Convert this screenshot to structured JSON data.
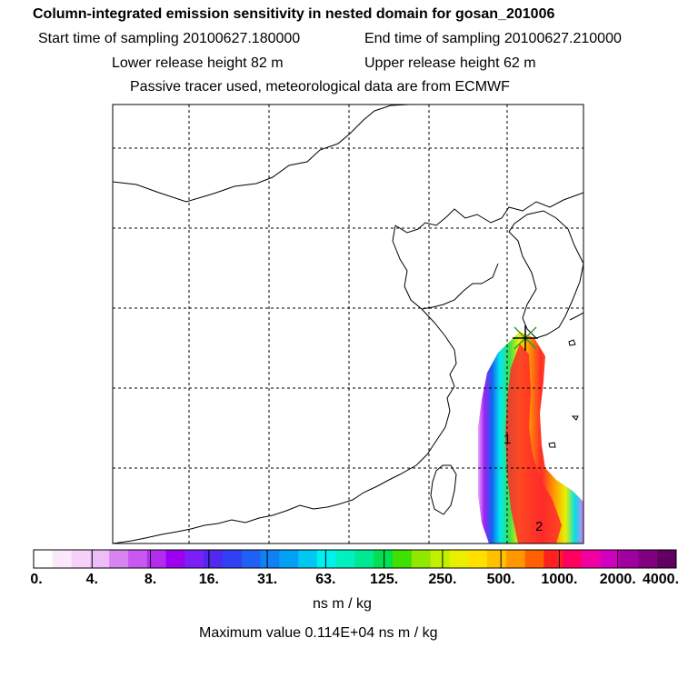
{
  "header": {
    "title": "Column-integrated emission sensitivity in nested domain for gosan_201006",
    "start_time": "Start time of sampling 20100627.180000",
    "end_time": "End time of sampling 20100627.210000",
    "lower_release": "Lower release height   82 m",
    "upper_release": "Upper release height   62 m",
    "tracer_note": "Passive tracer used, meteorological data are from ECMWF"
  },
  "map": {
    "labels": [
      "1",
      "2"
    ],
    "colors": {
      "marker": "#000000",
      "outline": "#000000"
    }
  },
  "legend": {
    "ticks": [
      "0.",
      "4.",
      "8.",
      "16.",
      "31.",
      "63.",
      "125.",
      "250.",
      "500.",
      "1000.",
      "2000.",
      "4000."
    ],
    "colors": [
      "#ffffff",
      "#fbe8fb",
      "#f6d2f8",
      "#eebcf6",
      "#d884f0",
      "#c858f0",
      "#b42cf0",
      "#9b00f0",
      "#7a20f5",
      "#5028f0",
      "#3040f5",
      "#2060f5",
      "#1080f5",
      "#00a0f5",
      "#00c8f0",
      "#00f0f0",
      "#00f0c0",
      "#00e890",
      "#00e050",
      "#40e000",
      "#90e800",
      "#c0f000",
      "#e8f000",
      "#ffe000",
      "#ffc000",
      "#ff9800",
      "#ff6000",
      "#ff2020",
      "#ff0060",
      "#f000a0",
      "#d000c0",
      "#a000a0",
      "#800080",
      "#600060"
    ],
    "unit": "ns m / kg",
    "max_value": "Maximum value  0.114E+04 ns m / kg"
  }
}
